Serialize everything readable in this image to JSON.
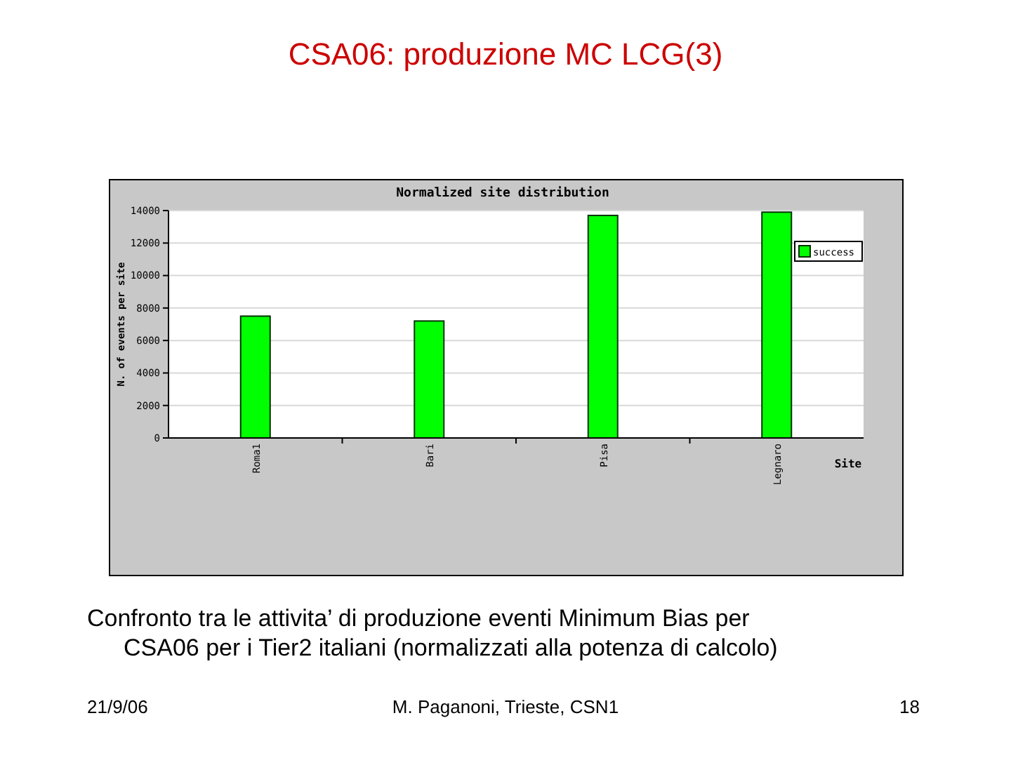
{
  "chart_data": {
    "type": "bar",
    "title": "CSA06: produzione MC LCG(3)",
    "subtitle": "Normalized site distribution",
    "xlabel": "Site",
    "ylabel": "N. of events per site",
    "categories": [
      "Roma1",
      "Bari",
      "Pisa",
      "Legnaro"
    ],
    "series": [
      {
        "name": "success",
        "color": "#00ff00",
        "values": [
          7500,
          7200,
          13700,
          13900
        ]
      }
    ],
    "ylim": [
      0,
      14000
    ],
    "yticks": [
      0,
      2000,
      4000,
      6000,
      8000,
      10000,
      12000,
      14000
    ],
    "grid": "y",
    "legend": "top right",
    "annotations": [
      "Confronto tra le attivita’ di produzione eventi Minimum Bias per CSA06 per i Tier2 italiani (normalizzati alla potenza di calcolo)",
      "21/9/06",
      "M. Paganoni, Trieste, CSN1",
      "18"
    ]
  }
}
